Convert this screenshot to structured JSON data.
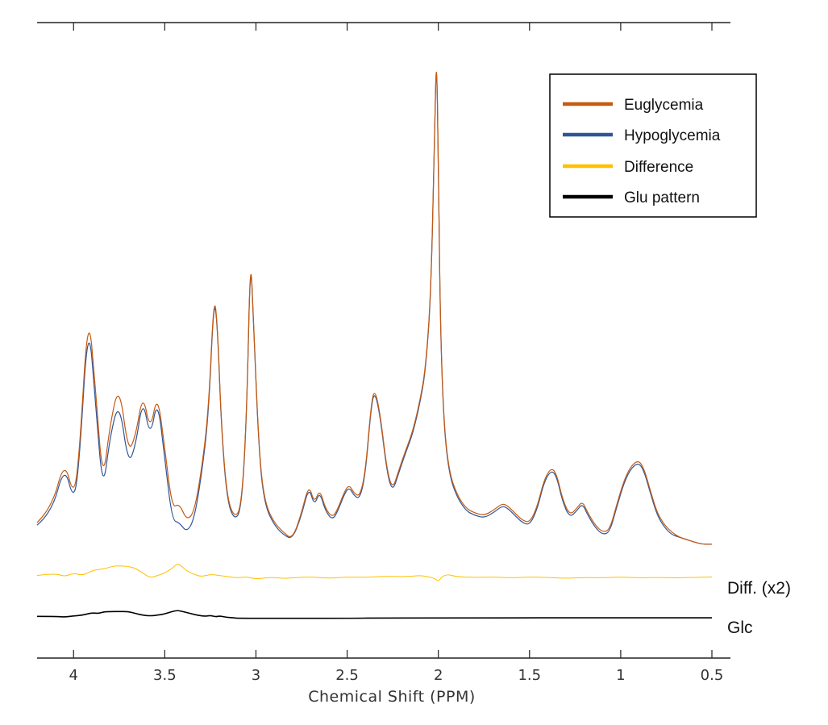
{
  "chart_data": {
    "type": "line",
    "xlabel": "Chemical Shift (PPM)",
    "xlim": [
      4.2,
      0.45
    ],
    "x_reversed": true,
    "xticks": [
      4,
      3.5,
      3,
      2.5,
      2,
      1.5,
      1,
      0.5
    ],
    "xtick_labels": [
      "4",
      "3.5",
      "3",
      "2.5",
      "2",
      "1.5",
      "1",
      "0.5"
    ],
    "grid": false,
    "legend": {
      "placement": "top-right",
      "entries": [
        {
          "label": "Euglycemia",
          "color": "#C55A11"
        },
        {
          "label": "Hypoglycemia",
          "color": "#2F5597"
        },
        {
          "label": "Difference",
          "color": "#FFC000"
        },
        {
          "label": "Glu pattern",
          "color": "#000000"
        }
      ]
    },
    "trace_labels": {
      "difference": "Diff. (x2)",
      "glc": "Glc"
    },
    "series": [
      {
        "key": "euglycemia",
        "color": "#C55A11",
        "baseline": 0,
        "x": [
          4.2,
          4.12,
          4.05,
          4.0,
          3.97,
          3.92,
          3.88,
          3.84,
          3.8,
          3.75,
          3.7,
          3.66,
          3.62,
          3.58,
          3.54,
          3.5,
          3.46,
          3.42,
          3.38,
          3.34,
          3.3,
          3.26,
          3.23,
          3.21,
          3.19,
          3.16,
          3.12,
          3.08,
          3.05,
          3.03,
          3.01,
          2.98,
          2.95,
          2.9,
          2.85,
          2.8,
          2.75,
          2.71,
          2.68,
          2.65,
          2.62,
          2.58,
          2.55,
          2.52,
          2.49,
          2.46,
          2.43,
          2.4,
          2.37,
          2.35,
          2.32,
          2.28,
          2.25,
          2.22,
          2.18,
          2.14,
          2.1,
          2.07,
          2.04,
          2.02,
          2.01,
          2.0,
          1.99,
          1.97,
          1.94,
          1.9,
          1.85,
          1.8,
          1.75,
          1.7,
          1.65,
          1.62,
          1.58,
          1.54,
          1.5,
          1.46,
          1.42,
          1.38,
          1.35,
          1.32,
          1.28,
          1.24,
          1.21,
          1.18,
          1.14,
          1.1,
          1.06,
          1.02,
          0.98,
          0.94,
          0.9,
          0.87,
          0.84,
          0.8,
          0.76,
          0.72,
          0.68,
          0.64,
          0.6,
          0.55,
          0.5
        ],
        "y": [
          0.04,
          0.1,
          0.3,
          0.15,
          0.3,
          0.94,
          0.6,
          0.2,
          0.45,
          0.62,
          0.33,
          0.4,
          0.58,
          0.42,
          0.58,
          0.35,
          0.1,
          0.12,
          0.05,
          0.08,
          0.25,
          0.5,
          1.0,
          0.85,
          0.45,
          0.15,
          0.06,
          0.1,
          0.5,
          1.2,
          0.8,
          0.3,
          0.12,
          0.04,
          0.0,
          -0.03,
          0.08,
          0.2,
          0.12,
          0.18,
          0.1,
          0.06,
          0.1,
          0.16,
          0.2,
          0.16,
          0.15,
          0.25,
          0.52,
          0.6,
          0.5,
          0.25,
          0.18,
          0.25,
          0.34,
          0.42,
          0.55,
          0.68,
          1.0,
          1.7,
          2.0,
          1.6,
          0.9,
          0.45,
          0.25,
          0.16,
          0.1,
          0.08,
          0.07,
          0.09,
          0.12,
          0.11,
          0.08,
          0.05,
          0.04,
          0.1,
          0.22,
          0.27,
          0.24,
          0.14,
          0.07,
          0.1,
          0.13,
          0.08,
          0.03,
          0.0,
          0.01,
          0.12,
          0.22,
          0.28,
          0.3,
          0.26,
          0.18,
          0.08,
          0.03,
          0.0,
          -0.02,
          -0.03,
          -0.04,
          -0.05,
          -0.05
        ]
      },
      {
        "key": "hypoglycemia",
        "color": "#2F5597",
        "baseline": 0,
        "x": [
          4.2,
          4.12,
          4.05,
          4.0,
          3.97,
          3.92,
          3.88,
          3.84,
          3.8,
          3.75,
          3.7,
          3.66,
          3.62,
          3.58,
          3.54,
          3.5,
          3.46,
          3.42,
          3.38,
          3.34,
          3.3,
          3.26,
          3.23,
          3.21,
          3.19,
          3.16,
          3.12,
          3.08,
          3.05,
          3.03,
          3.01,
          2.98,
          2.95,
          2.9,
          2.85,
          2.8,
          2.75,
          2.71,
          2.68,
          2.65,
          2.62,
          2.58,
          2.55,
          2.52,
          2.49,
          2.46,
          2.43,
          2.4,
          2.37,
          2.35,
          2.32,
          2.28,
          2.25,
          2.22,
          2.18,
          2.14,
          2.1,
          2.07,
          2.04,
          2.02,
          2.01,
          2.0,
          1.99,
          1.97,
          1.94,
          1.9,
          1.85,
          1.8,
          1.75,
          1.7,
          1.65,
          1.62,
          1.58,
          1.54,
          1.5,
          1.46,
          1.42,
          1.38,
          1.35,
          1.32,
          1.28,
          1.24,
          1.21,
          1.18,
          1.14,
          1.1,
          1.06,
          1.02,
          0.98,
          0.94,
          0.9,
          0.87,
          0.84,
          0.8,
          0.76,
          0.72,
          0.68,
          0.64,
          0.6,
          0.55,
          0.5
        ],
        "y": [
          0.03,
          0.08,
          0.28,
          0.13,
          0.27,
          0.9,
          0.55,
          0.16,
          0.4,
          0.55,
          0.28,
          0.36,
          0.56,
          0.39,
          0.56,
          0.31,
          0.05,
          0.04,
          0.0,
          0.05,
          0.23,
          0.48,
          0.99,
          0.84,
          0.44,
          0.14,
          0.05,
          0.09,
          0.49,
          1.19,
          0.79,
          0.29,
          0.11,
          0.03,
          -0.01,
          -0.03,
          0.07,
          0.19,
          0.11,
          0.17,
          0.09,
          0.05,
          0.09,
          0.15,
          0.19,
          0.15,
          0.14,
          0.24,
          0.51,
          0.59,
          0.49,
          0.24,
          0.17,
          0.24,
          0.33,
          0.41,
          0.54,
          0.67,
          0.99,
          1.69,
          1.99,
          1.59,
          0.89,
          0.44,
          0.24,
          0.15,
          0.09,
          0.07,
          0.06,
          0.08,
          0.11,
          0.1,
          0.07,
          0.04,
          0.03,
          0.09,
          0.21,
          0.26,
          0.23,
          0.13,
          0.06,
          0.09,
          0.12,
          0.07,
          0.02,
          -0.01,
          0.0,
          0.11,
          0.21,
          0.27,
          0.29,
          0.25,
          0.17,
          0.07,
          0.02,
          -0.01,
          -0.02,
          -0.03,
          -0.04,
          -0.05,
          -0.05
        ]
      },
      {
        "key": "difference",
        "color": "#FFC000",
        "baseline": -0.18,
        "x": [
          4.2,
          4.1,
          4.05,
          4.0,
          3.95,
          3.9,
          3.86,
          3.82,
          3.78,
          3.74,
          3.7,
          3.66,
          3.62,
          3.58,
          3.54,
          3.5,
          3.46,
          3.43,
          3.41,
          3.38,
          3.34,
          3.3,
          3.25,
          3.2,
          3.15,
          3.1,
          3.05,
          3.0,
          2.95,
          2.9,
          2.85,
          2.8,
          2.7,
          2.6,
          2.5,
          2.4,
          2.3,
          2.2,
          2.15,
          2.1,
          2.05,
          2.02,
          2.0,
          1.98,
          1.95,
          1.9,
          1.8,
          1.7,
          1.6,
          1.5,
          1.4,
          1.3,
          1.2,
          1.1,
          1.0,
          0.9,
          0.8,
          0.7,
          0.6,
          0.5
        ],
        "y": [
          0.0,
          0.01,
          -0.005,
          0.01,
          0.0,
          0.02,
          0.025,
          0.03,
          0.04,
          0.04,
          0.038,
          0.03,
          0.01,
          -0.01,
          0.0,
          0.01,
          0.03,
          0.05,
          0.04,
          0.02,
          0.005,
          -0.005,
          0.005,
          0.0,
          -0.005,
          -0.01,
          -0.005,
          -0.015,
          -0.01,
          -0.008,
          -0.012,
          -0.01,
          -0.005,
          -0.012,
          -0.006,
          -0.008,
          -0.003,
          -0.005,
          -0.003,
          0.0,
          -0.006,
          -0.012,
          -0.025,
          -0.005,
          0.005,
          -0.005,
          -0.008,
          -0.006,
          -0.01,
          -0.006,
          -0.008,
          -0.012,
          -0.008,
          -0.01,
          -0.006,
          -0.01,
          -0.008,
          -0.01,
          -0.008,
          -0.006
        ]
      },
      {
        "key": "glu_pattern",
        "color": "#000000",
        "baseline": -0.35,
        "x": [
          4.2,
          4.1,
          4.05,
          4.0,
          3.95,
          3.9,
          3.86,
          3.84,
          3.8,
          3.75,
          3.7,
          3.66,
          3.62,
          3.58,
          3.54,
          3.5,
          3.46,
          3.43,
          3.4,
          3.36,
          3.32,
          3.28,
          3.25,
          3.22,
          3.2,
          3.16,
          3.12,
          3.1,
          2.4,
          2.39,
          0.5
        ],
        "y": [
          0.0,
          0.0,
          -0.003,
          0.002,
          0.005,
          0.015,
          0.012,
          0.018,
          0.02,
          0.02,
          0.02,
          0.012,
          0.005,
          0.002,
          0.005,
          0.01,
          0.02,
          0.025,
          0.02,
          0.012,
          0.005,
          0.0,
          0.004,
          -0.002,
          0.002,
          -0.004,
          -0.006,
          -0.008,
          -0.008,
          -0.006,
          -0.006
        ]
      }
    ]
  }
}
